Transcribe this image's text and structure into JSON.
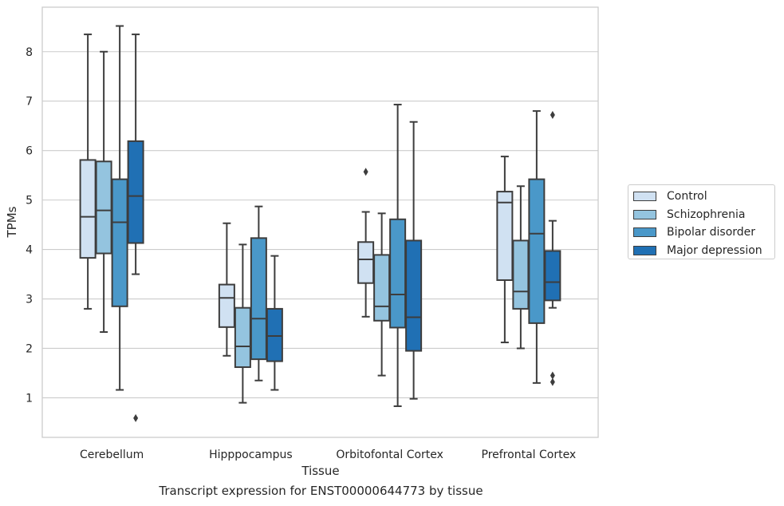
{
  "caption": "Transcript expression for ENST00000644773 by tissue",
  "chart_data": {
    "type": "box",
    "xlabel": "Tissue",
    "ylabel": "TPMs",
    "ylim": [
      0.2,
      8.9
    ],
    "yticks": [
      1,
      2,
      3,
      4,
      5,
      6,
      7,
      8
    ],
    "grid": "horizontal",
    "legend_position": "right",
    "categories": [
      "Cerebellum",
      "Hipppocampus",
      "Orbitofontal Cortex",
      "Prefrontal Cortex"
    ],
    "series": [
      {
        "name": "Control",
        "color": "#d0e1f2",
        "boxes": [
          {
            "whislo": 2.8,
            "q1": 3.83,
            "med": 4.66,
            "q3": 5.81,
            "whishi": 8.35,
            "fliers": []
          },
          {
            "whislo": 1.85,
            "q1": 2.43,
            "med": 3.02,
            "q3": 3.29,
            "whishi": 4.53,
            "fliers": []
          },
          {
            "whislo": 2.64,
            "q1": 3.32,
            "med": 3.8,
            "q3": 4.15,
            "whishi": 4.76,
            "fliers": [
              5.57
            ]
          },
          {
            "whislo": 2.12,
            "q1": 3.38,
            "med": 4.95,
            "q3": 5.17,
            "whishi": 5.88,
            "fliers": []
          }
        ]
      },
      {
        "name": "Schizophrenia",
        "color": "#94c4df",
        "boxes": [
          {
            "whislo": 2.33,
            "q1": 3.92,
            "med": 4.79,
            "q3": 5.78,
            "whishi": 8.0,
            "fliers": []
          },
          {
            "whislo": 0.9,
            "q1": 1.62,
            "med": 2.04,
            "q3": 2.82,
            "whishi": 4.1,
            "fliers": []
          },
          {
            "whislo": 1.45,
            "q1": 2.56,
            "med": 2.85,
            "q3": 3.89,
            "whishi": 4.73,
            "fliers": []
          },
          {
            "whislo": 2.0,
            "q1": 2.8,
            "med": 3.15,
            "q3": 4.18,
            "whishi": 5.28,
            "fliers": []
          }
        ]
      },
      {
        "name": "Bipolar disorder",
        "color": "#4a98c9",
        "boxes": [
          {
            "whislo": 1.16,
            "q1": 2.85,
            "med": 4.55,
            "q3": 5.42,
            "whishi": 8.52,
            "fliers": []
          },
          {
            "whislo": 1.35,
            "q1": 1.78,
            "med": 2.6,
            "q3": 4.23,
            "whishi": 4.87,
            "fliers": []
          },
          {
            "whislo": 0.83,
            "q1": 2.42,
            "med": 3.09,
            "q3": 4.61,
            "whishi": 6.93,
            "fliers": []
          },
          {
            "whislo": 1.3,
            "q1": 2.51,
            "med": 4.32,
            "q3": 5.42,
            "whishi": 6.8,
            "fliers": []
          }
        ]
      },
      {
        "name": "Major depression",
        "color": "#2070b4",
        "boxes": [
          {
            "whislo": 3.5,
            "q1": 4.13,
            "med": 5.08,
            "q3": 6.19,
            "whishi": 8.35,
            "fliers": [
              0.59
            ]
          },
          {
            "whislo": 1.16,
            "q1": 1.74,
            "med": 2.25,
            "q3": 2.8,
            "whishi": 3.87,
            "fliers": []
          },
          {
            "whislo": 0.98,
            "q1": 1.95,
            "med": 2.63,
            "q3": 4.18,
            "whishi": 6.58,
            "fliers": []
          },
          {
            "whislo": 2.82,
            "q1": 2.97,
            "med": 3.34,
            "q3": 3.97,
            "whishi": 4.58,
            "fliers": [
              6.72,
              1.45,
              1.32
            ]
          }
        ]
      }
    ]
  }
}
